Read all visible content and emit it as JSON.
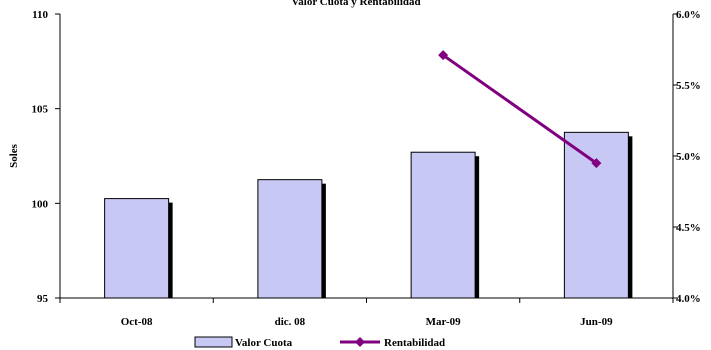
{
  "chart_data": {
    "type": "bar+line",
    "title": "Valor Cuota y Rentabilidad",
    "categories": [
      "Oct-08",
      "dic. 08",
      "Mar-09",
      "Jun-09"
    ],
    "ylabel": "Soles",
    "ylim": [
      95,
      110
    ],
    "yticks": [
      "95",
      "100",
      "105",
      "110"
    ],
    "y2lim": [
      0.04,
      0.06
    ],
    "y2ticks": [
      "4.0%",
      "4.5%",
      "5.0%",
      "5.5%",
      "6.0%"
    ],
    "series": [
      {
        "name": "Valor Cuota",
        "type": "bar",
        "axis": "left",
        "values": [
          100.25,
          101.25,
          102.7,
          103.75
        ],
        "color": "#c8c8f4"
      },
      {
        "name": "Rentabilidad",
        "type": "line",
        "axis": "right",
        "values": [
          null,
          null,
          0.0571,
          0.0495
        ],
        "color": "#800080"
      }
    ],
    "legend": "bottom-center",
    "grid": false
  }
}
